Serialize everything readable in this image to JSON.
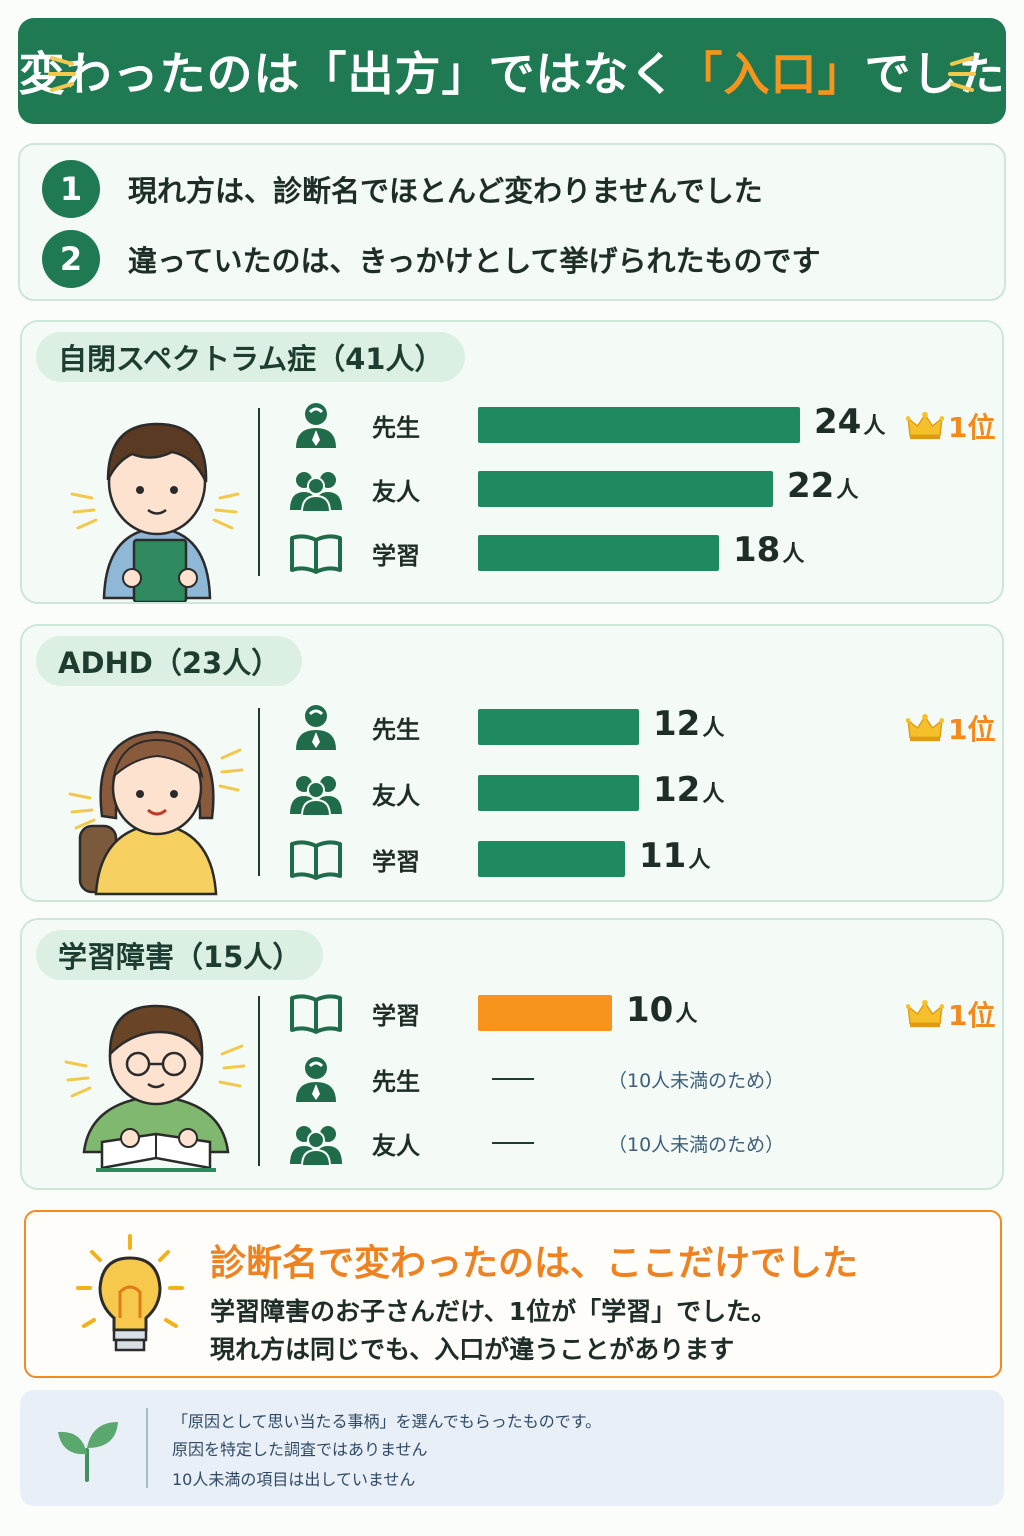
{
  "title": {
    "pre": "変わったのは「",
    "word1": "出方",
    "mid": "」ではなく",
    "word2": "「入口」",
    "post": "でした"
  },
  "summary": [
    {
      "num": "1",
      "text": "現れ方は、診断名でほとんど変わりませんでした"
    },
    {
      "num": "2",
      "text": "違っていたのは、きっかけとして挙げられたものです"
    }
  ],
  "colors": {
    "primary": "#1f7a54",
    "accent": "#f7941d",
    "bar_green": "#1f8a5f",
    "bar_orange": "#f7941d"
  },
  "chart_data": [
    {
      "type": "bar",
      "title": "自閉スペクトラム症（41人）",
      "categories": [
        "先生",
        "友人",
        "学習"
      ],
      "icons": [
        "teacher-icon",
        "friends-icon",
        "book-icon"
      ],
      "values": [
        24,
        22,
        18
      ],
      "value_labels": [
        "24",
        "22",
        "18"
      ],
      "unit": "人",
      "rank_label": "1位",
      "rank_index": 0,
      "bar_color": "#1f8a5f"
    },
    {
      "type": "bar",
      "title": "ADHD（23人）",
      "categories": [
        "先生",
        "友人",
        "学習"
      ],
      "icons": [
        "teacher-icon",
        "friends-icon",
        "book-icon"
      ],
      "values": [
        12,
        12,
        11
      ],
      "value_labels": [
        "12",
        "12",
        "11"
      ],
      "unit": "人",
      "rank_label": "1位",
      "rank_index": 0,
      "bar_color": "#1f8a5f"
    },
    {
      "type": "bar",
      "title": "学習障害（15人）",
      "categories": [
        "学習",
        "先生",
        "友人"
      ],
      "icons": [
        "book-icon",
        "teacher-icon",
        "friends-icon"
      ],
      "values": [
        10,
        null,
        null
      ],
      "value_labels": [
        "10",
        "",
        ""
      ],
      "unit": "人",
      "rank_label": "1位",
      "rank_index": 0,
      "bar_color": "#f7941d",
      "missing_note": "（10人未満のため）"
    }
  ],
  "conclusion": {
    "head": "診断名で変わったのは、ここだけでした",
    "line1": "学習障害のお子さんだけ、1位が「学習」でした。",
    "line2": "現れ方は同じでも、入口が違うことがあります"
  },
  "footnote": [
    "「原因として思い当たる事柄」を選んでもらったものです。",
    "原因を特定した調査ではありません",
    "10人未満の項目は出していません"
  ]
}
